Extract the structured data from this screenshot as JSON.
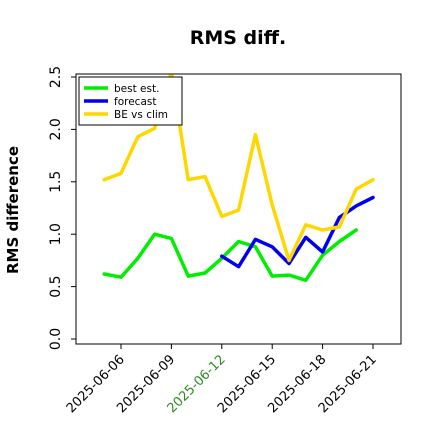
{
  "chart_data": {
    "type": "line",
    "title": "RMS diff.",
    "ylabel": "RMS difference",
    "xlabel": "",
    "ylim": [
      0,
      2.5
    ],
    "yticks": [
      "0.0",
      "0.5",
      "1.0",
      "1.5",
      "2.0",
      "2.5"
    ],
    "ytick_values": [
      0,
      0.5,
      1.0,
      1.5,
      2.0,
      2.5
    ],
    "x": [
      "2025-06-05",
      "2025-06-06",
      "2025-06-07",
      "2025-06-08",
      "2025-06-09",
      "2025-06-10",
      "2025-06-11",
      "2025-06-12",
      "2025-06-13",
      "2025-06-14",
      "2025-06-15",
      "2025-06-16",
      "2025-06-17",
      "2025-06-18",
      "2025-06-19",
      "2025-06-20",
      "2025-06-21"
    ],
    "xticks": [
      {
        "label": "2025-06-06",
        "date": "2025-06-06",
        "color": "#000000"
      },
      {
        "label": "2025-06-09",
        "date": "2025-06-09",
        "color": "#000000"
      },
      {
        "label": "2025-06-12",
        "date": "2025-06-12",
        "color": "#2e8b22"
      },
      {
        "label": "2025-06-15",
        "date": "2025-06-15",
        "color": "#000000"
      },
      {
        "label": "2025-06-18",
        "date": "2025-06-18",
        "color": "#000000"
      },
      {
        "label": "2025-06-21",
        "date": "2025-06-21",
        "color": "#000000"
      }
    ],
    "series": [
      {
        "name": "best est.",
        "color": "#00ee00",
        "values": [
          0.62,
          0.59,
          0.77,
          1.0,
          0.96,
          0.6,
          0.63,
          0.77,
          0.93,
          0.88,
          0.6,
          0.61,
          0.56,
          0.8,
          0.93,
          1.04,
          null
        ]
      },
      {
        "name": "forecast",
        "color": "#0000ee",
        "values": [
          null,
          null,
          null,
          null,
          null,
          null,
          null,
          0.79,
          0.69,
          0.95,
          0.88,
          0.72,
          0.97,
          0.83,
          1.16,
          1.27,
          1.35
        ]
      },
      {
        "name": "BE vs clim",
        "color": "#ffd700",
        "values": [
          1.52,
          1.58,
          1.93,
          2.01,
          2.55,
          1.52,
          1.55,
          1.17,
          1.23,
          1.95,
          1.28,
          0.75,
          1.09,
          1.04,
          1.07,
          1.43,
          1.52
        ]
      }
    ],
    "grid": false,
    "legend_position": "top-left"
  }
}
